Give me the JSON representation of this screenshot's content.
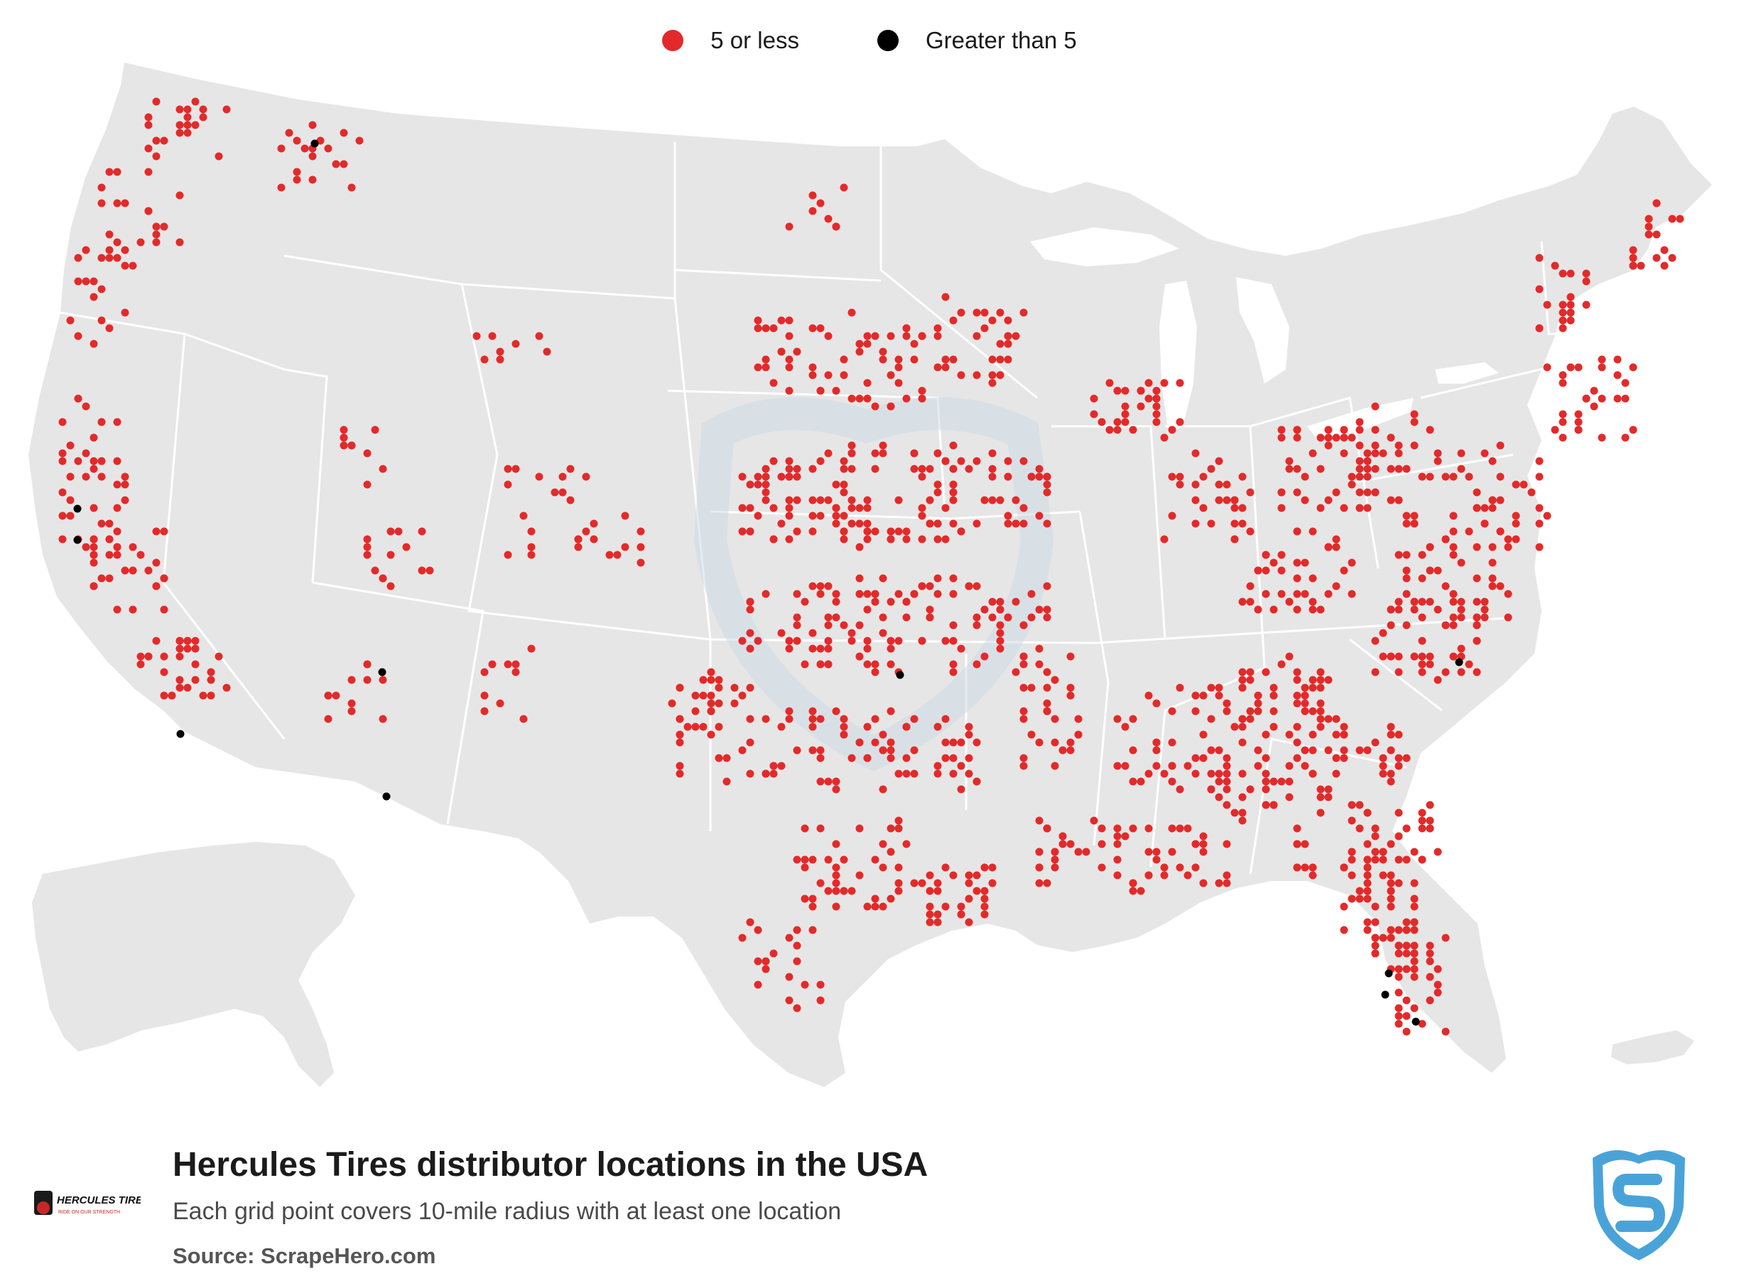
{
  "legend": {
    "items": [
      {
        "label": "5 or less",
        "color": "#e32a2a"
      },
      {
        "label": "Greater than 5",
        "color": "#000000"
      }
    ]
  },
  "map": {
    "land_color": "#e6e6e6",
    "border_color": "#ffffff",
    "watermark_color": "#c9d9e6"
  },
  "footer": {
    "title": "Hercules Tires distributor locations in the USA",
    "subtitle": "Each grid point covers 10-mile radius with at least one location",
    "source": "Source: ScrapeHero.com"
  },
  "brand": {
    "name": "HERCULES TIRES",
    "tagline": "RIDE ON OUR STRENGTH",
    "icon": "hercules-tires-logo"
  },
  "scrapehero_logo": {
    "icon": "scrapehero-shield-logo",
    "color": "#4aa3d8"
  }
}
